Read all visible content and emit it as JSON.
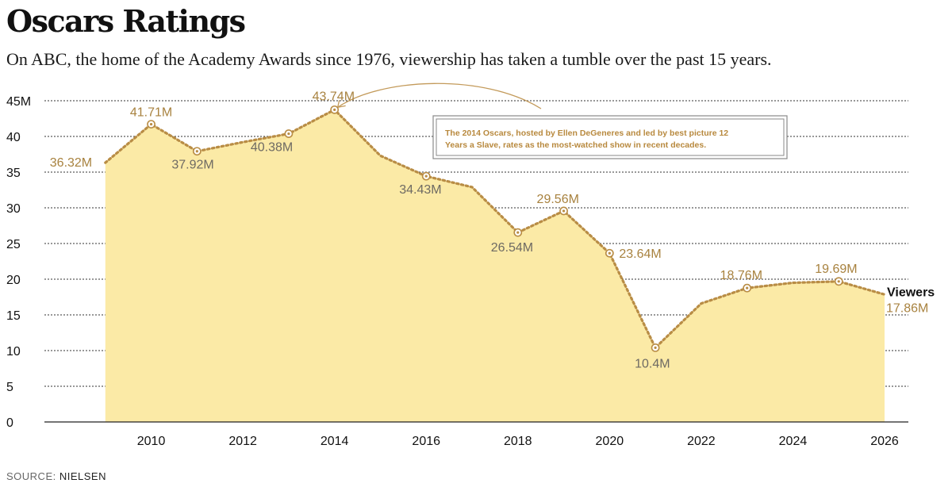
{
  "title": "Oscars Ratings",
  "subtitle": "On ABC, the home of the Academy Awards since 1976, viewership has taken a tumble over the past 15 years.",
  "source": {
    "label": "SOURCE:",
    "value": "NIELSEN"
  },
  "colors": {
    "area": "#fbeaa6",
    "line": "#b98d45",
    "grid": "#333333"
  },
  "chart_data": {
    "type": "area",
    "title": "Oscars Ratings",
    "xlabel": "",
    "ylabel": "",
    "xlim": [
      2008,
      2026
    ],
    "ylim": [
      0,
      45
    ],
    "grid": true,
    "x_ticks": [
      "2010",
      "2012",
      "2014",
      "2016",
      "2018",
      "2020",
      "2022",
      "2024",
      "2026"
    ],
    "y_ticks": [
      "0",
      "5",
      "10",
      "15",
      "20",
      "25",
      "30",
      "35",
      "40",
      "45M"
    ],
    "series": [
      {
        "name": "Viewers",
        "x": [
          2009,
          2010,
          2011,
          2012,
          2013,
          2014,
          2015,
          2016,
          2017,
          2018,
          2019,
          2020,
          2021,
          2022,
          2023,
          2024,
          2025,
          2026
        ],
        "values": [
          36.32,
          41.71,
          37.92,
          39.2,
          40.38,
          43.74,
          37.3,
          34.43,
          32.9,
          26.54,
          29.56,
          23.64,
          10.4,
          16.6,
          18.76,
          19.5,
          19.69,
          17.86
        ]
      }
    ],
    "labels": [
      {
        "x": 2009,
        "value": 36.32,
        "text": "36.32M",
        "marker": false,
        "tone": "gold"
      },
      {
        "x": 2010,
        "value": 41.71,
        "text": "41.71M",
        "marker": true,
        "tone": "gold"
      },
      {
        "x": 2011,
        "value": 37.92,
        "text": "37.92M",
        "marker": true,
        "tone": "dark"
      },
      {
        "x": 2013,
        "value": 40.38,
        "text": "40.38M",
        "marker": true,
        "tone": "dark"
      },
      {
        "x": 2014,
        "value": 43.74,
        "text": "43.74M",
        "marker": true,
        "tone": "gold"
      },
      {
        "x": 2016,
        "value": 34.43,
        "text": "34.43M",
        "marker": true,
        "tone": "dark"
      },
      {
        "x": 2018,
        "value": 26.54,
        "text": "26.54M",
        "marker": true,
        "tone": "dark"
      },
      {
        "x": 2019,
        "value": 29.56,
        "text": "29.56M",
        "marker": true,
        "tone": "gold"
      },
      {
        "x": 2020,
        "value": 23.64,
        "text": "23.64M",
        "marker": true,
        "tone": "gold"
      },
      {
        "x": 2021,
        "value": 10.4,
        "text": "10.4M",
        "marker": true,
        "tone": "dark"
      },
      {
        "x": 2023,
        "value": 18.76,
        "text": "18.76M",
        "marker": true,
        "tone": "gold"
      },
      {
        "x": 2025,
        "value": 19.69,
        "text": "19.69M",
        "marker": true,
        "tone": "gold"
      },
      {
        "x": 2026,
        "value": 17.86,
        "text": "17.86M",
        "marker": false,
        "tone": "gold"
      }
    ],
    "series_label": "Viewers",
    "annotation": {
      "lines": [
        "The 2014 Oscars, hosted by Ellen DeGeneres and led by best picture 12",
        "Years a Slave, rates as the most-watched show in recent decades."
      ],
      "target_x": 2014,
      "target_value": 43.74
    }
  }
}
